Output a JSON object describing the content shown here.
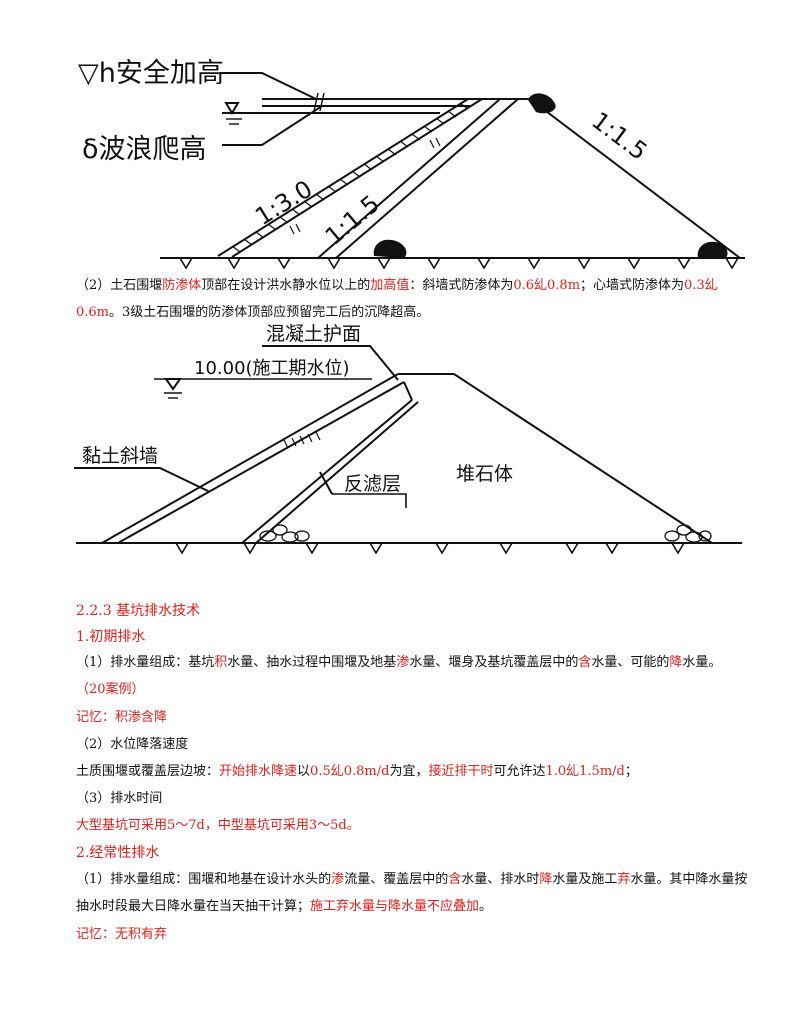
{
  "diagram1": {
    "label_h": "▽h安全加高",
    "label_delta": "δ波浪爬高",
    "slope_a": "1:3.0",
    "slope_b": "1:1.5",
    "slope_c": "1:1.5"
  },
  "para1": {
    "p1": "（2）土石围堰",
    "r1": "防渗体",
    "p2": "顶部在设计洪水静水位以上的",
    "r2": "加高值",
    "p3": "：斜墙式防渗体为",
    "r3": "0.6乣0.8m",
    "p4": "；心墙式防渗体为",
    "r4": "0.3乣0.6m",
    "p5": "。3级土石围堰的防渗体顶部应预留完工后的沉降超高。"
  },
  "diagram2": {
    "label_cover": "混凝土护面",
    "label_water": "10.00(施工期水位)",
    "label_clay": "黏土斜墙",
    "label_filter": "反滤层",
    "label_rock": "堆石体"
  },
  "section": {
    "title": "2.2.3 基坑排水技术",
    "h1": "1.初期排水",
    "s1": {
      "p1": "（1）排水量组成：基坑",
      "r1": "积",
      "p2": "水量、抽水过程中围堰及地基",
      "r2": "渗",
      "p3": "水量、堰身及基坑覆盖层中的",
      "r3": "含",
      "p4": "水量、可能的",
      "r4": "降",
      "p5": "水量。"
    },
    "case": "（20案例）",
    "memo1": "记忆：积渗含降",
    "s2_title": "（2）水位降落速度",
    "s2": {
      "p1": "土质围堰或覆盖层边坡：",
      "r1": "开始排水降速",
      "p2": "以",
      "r2": "0.5乣0.8m/d",
      "p3": "为宜，",
      "r3": "接近排干时",
      "p4": "可允许达",
      "r4": "1.0乣1.5m/d",
      "p5": "；"
    },
    "s3_title": "（3）排水时间",
    "s3_text": "大型基坑可采用5～7d，中型基坑可采用3～5d。",
    "h2": "2.经常性排水",
    "s4": {
      "p1": "（1）排水量组成：围堰和地基在设计水头的",
      "r1": "渗",
      "p2": "流量、覆盖层中的",
      "r2": "含",
      "p3": "水量、排水时",
      "r3": "降",
      "p4": "水量及施工",
      "r4": "弃",
      "p5": "水量。其中降水量按抽水时段最大日降水量在当天抽干计算；",
      "r5": "施工弃水量与降水量不应叠加",
      "p6": "。"
    },
    "memo2": "记忆：无积有弃"
  },
  "colors": {
    "highlight": "#e0201c",
    "ink": "#111111"
  }
}
